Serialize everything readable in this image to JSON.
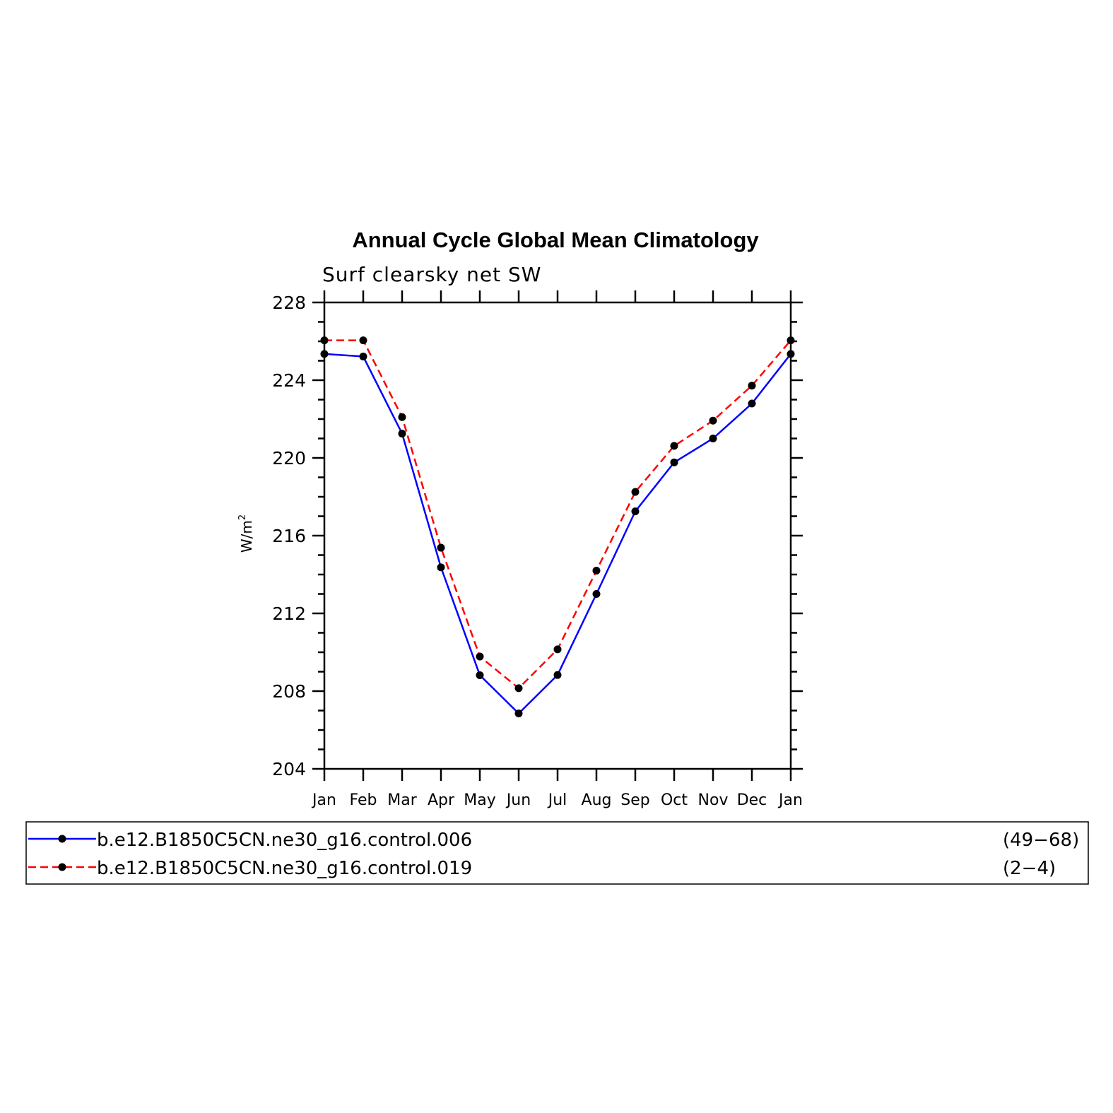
{
  "chart_data": {
    "type": "line",
    "title": "Annual Cycle Global Mean Climatology",
    "subtitle": "Surf clearsky net SW",
    "xlabel": "",
    "ylabel": "W/m",
    "ylabel_superscript": "2",
    "categories": [
      "Jan",
      "Feb",
      "Mar",
      "Apr",
      "May",
      "Jun",
      "Jul",
      "Aug",
      "Sep",
      "Oct",
      "Nov",
      "Dec",
      "Jan"
    ],
    "ylim": [
      204,
      228
    ],
    "yticks": [
      204,
      208,
      212,
      216,
      220,
      224,
      228
    ],
    "ytick_labels": [
      "204",
      "208",
      "212",
      "216",
      "220",
      "224",
      "228"
    ],
    "grid": false,
    "legend_position": "bottom",
    "series": [
      {
        "name": "b.e12.B1850C5CN.ne30_g16.control.006",
        "years": "(49−68)",
        "color": "#0000ff",
        "line_style": "solid",
        "marker": "filled-circle",
        "values": [
          225.35,
          225.22,
          221.25,
          214.37,
          208.82,
          206.85,
          208.83,
          213.0,
          217.25,
          219.77,
          221.0,
          222.8,
          225.35
        ]
      },
      {
        "name": "b.e12.B1850C5CN.ne30_g16.control.019",
        "years": "(2−4)",
        "color": "#ff0000",
        "line_style": "dashed",
        "marker": "filled-circle",
        "values": [
          226.05,
          226.05,
          222.1,
          215.38,
          209.78,
          208.15,
          210.15,
          214.2,
          218.25,
          220.62,
          221.92,
          223.72,
          226.05
        ]
      }
    ]
  }
}
